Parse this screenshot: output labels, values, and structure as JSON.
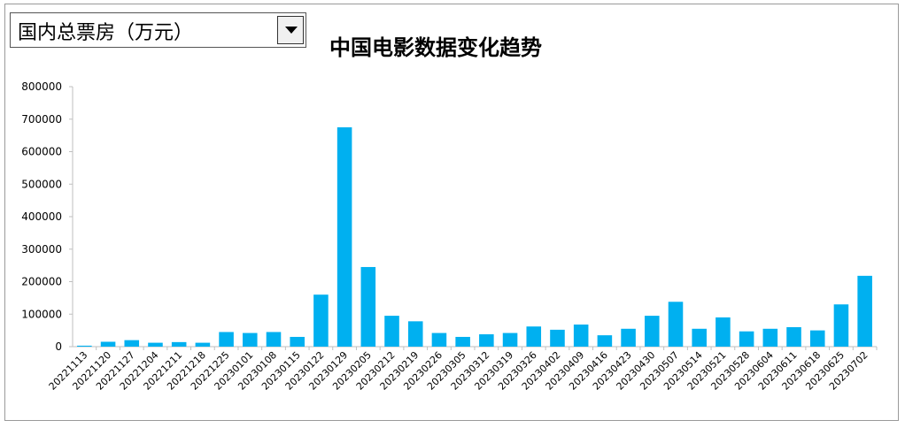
{
  "dropdown": {
    "selected": "国内总票房（万元）"
  },
  "chart_data": {
    "type": "bar",
    "title": "中国电影数据变化趋势",
    "xlabel": "",
    "ylabel": "",
    "ylim": [
      0,
      800000
    ],
    "yticks": [
      0,
      100000,
      200000,
      300000,
      400000,
      500000,
      600000,
      700000,
      800000
    ],
    "ytick_labels": [
      "0",
      "100000",
      "200000",
      "300000",
      "400000",
      "500000",
      "600000",
      "700000",
      "800000"
    ],
    "bar_color": "#00b0f0",
    "grid": false,
    "categories": [
      "20221113",
      "20221120",
      "20221127",
      "20221204",
      "20221211",
      "20221218",
      "20221225",
      "20230101",
      "20230108",
      "20230115",
      "20230122",
      "20230129",
      "20230205",
      "20230212",
      "20230219",
      "20230226",
      "20230305",
      "20230312",
      "20230319",
      "20230326",
      "20230402",
      "20230409",
      "20230416",
      "20230423",
      "20230430",
      "20230507",
      "20230514",
      "20230521",
      "20230528",
      "20230604",
      "20230611",
      "20230618",
      "20230625",
      "20230702"
    ],
    "values": [
      3000,
      15000,
      20000,
      12000,
      14000,
      12000,
      45000,
      42000,
      45000,
      30000,
      160000,
      675000,
      245000,
      95000,
      78000,
      42000,
      30000,
      38000,
      42000,
      62000,
      52000,
      68000,
      35000,
      55000,
      95000,
      138000,
      55000,
      90000,
      47000,
      55000,
      60000,
      50000,
      130000,
      218000
    ]
  }
}
